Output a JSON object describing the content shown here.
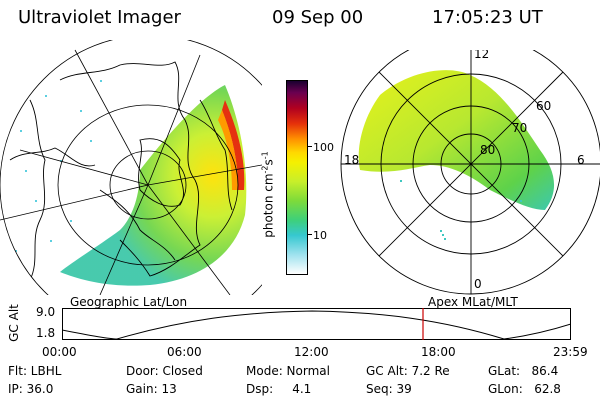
{
  "header": {
    "instrument": "Ultraviolet Imager",
    "date": "09 Sep 00",
    "time": "17:05:23 UT"
  },
  "colorbar": {
    "unit_label": "photon cm",
    "unit_sup1": "-2",
    "unit_s": "s",
    "unit_sup2": "-1",
    "ticks": [
      "100",
      "10"
    ]
  },
  "left_panel": {
    "caption": "Geographic Lat/Lon"
  },
  "right_panel": {
    "caption": "Apex MLat/MLT",
    "mlt_labels": [
      "12",
      "18",
      "6",
      "0"
    ],
    "lat_labels": [
      "60",
      "70",
      "80"
    ]
  },
  "timeline": {
    "y_label": "GC Alt",
    "y_ticks": [
      "9.0",
      "1.8"
    ],
    "x_ticks": [
      "00:00",
      "06:00",
      "12:00",
      "18:00",
      "23:59"
    ],
    "marker_color": "#cc0000"
  },
  "status": {
    "flt": "Flt: LBHL",
    "door": "Door: Closed",
    "mode": "Mode: Normal",
    "gc_alt": "GC Alt: 7.2 Re",
    "glat": "GLat:   86.4",
    "ip": "IP: 36.0",
    "gain": "Gain: 13",
    "dsp": "Dsp:     4.1",
    "seq": "Seq: 39",
    "glon": "GLon:   62.8"
  }
}
